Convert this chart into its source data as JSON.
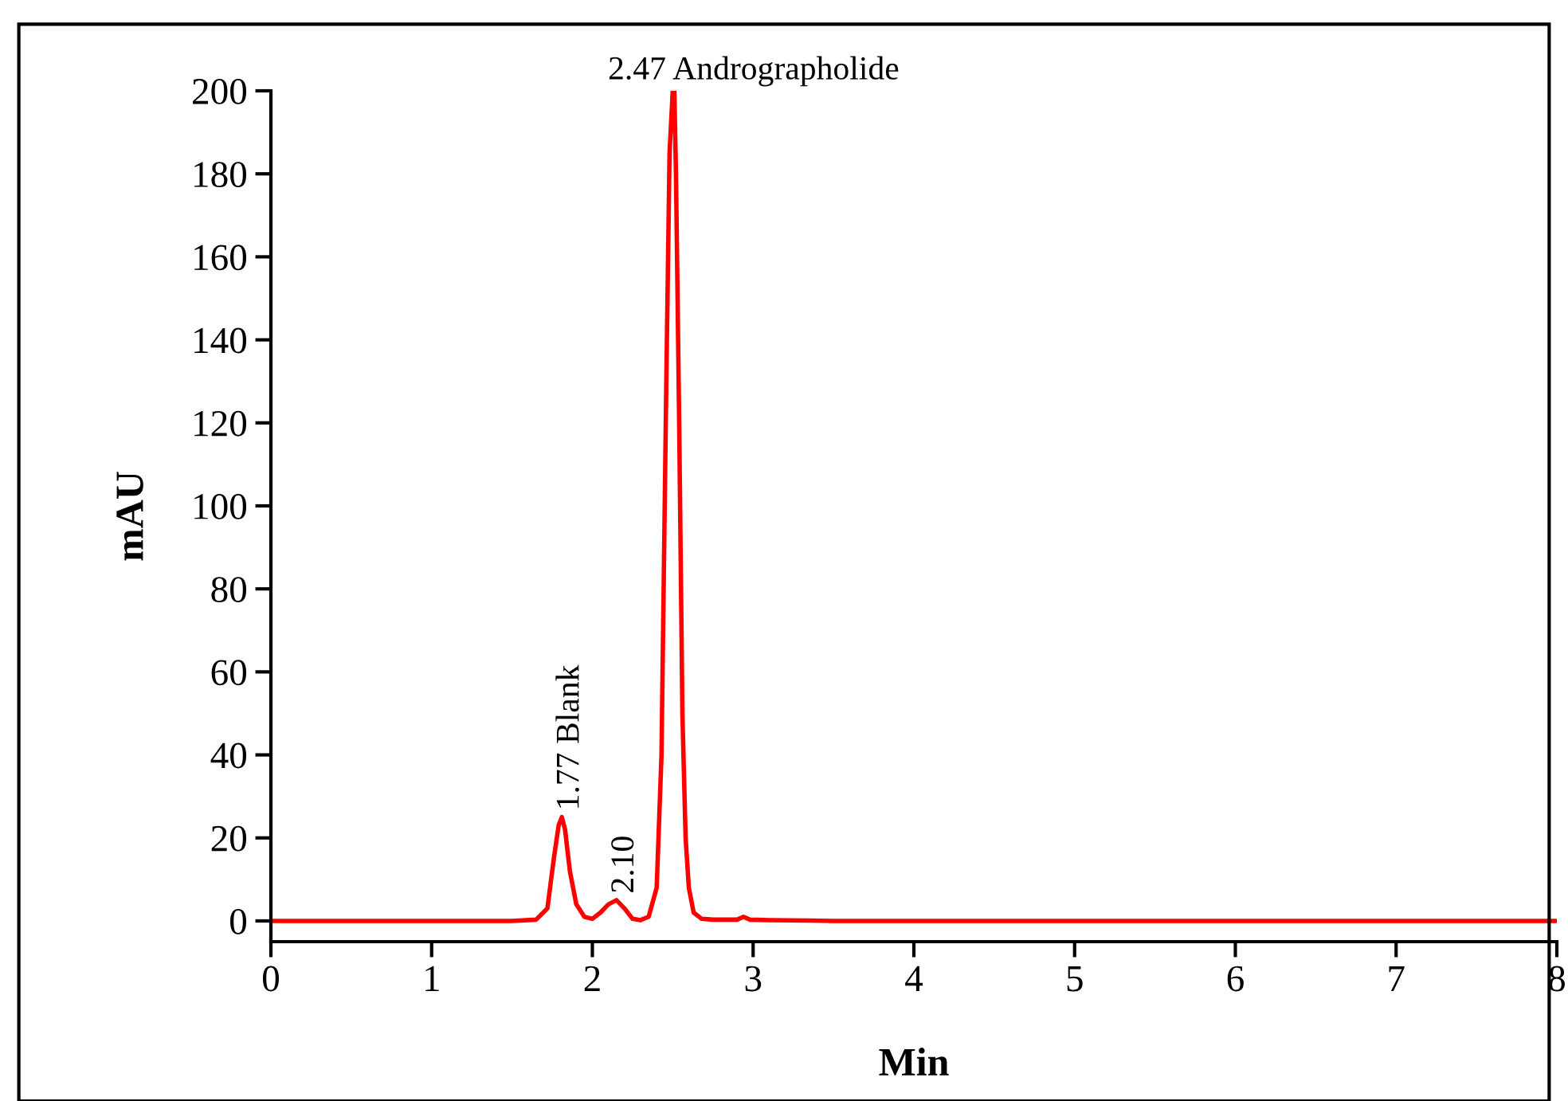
{
  "chart_data": {
    "type": "line",
    "xlabel": "Min",
    "ylabel": "mAU",
    "series": [
      {
        "color": "#ff0000",
        "x": [
          0,
          1.5,
          1.65,
          1.72,
          1.76,
          1.79,
          1.81,
          1.83,
          1.86,
          1.9,
          1.95,
          2.0,
          2.05,
          2.1,
          2.15,
          2.2,
          2.25,
          2.3,
          2.35,
          2.4,
          2.43,
          2.46,
          2.48,
          2.5,
          2.51,
          2.52,
          2.54,
          2.56,
          2.58,
          2.6,
          2.63,
          2.68,
          2.75,
          2.9,
          2.94,
          2.98,
          3.1,
          3.5,
          8
        ],
        "values": [
          0,
          0,
          0.3,
          3,
          15,
          23,
          25,
          22,
          12,
          4,
          1,
          0.5,
          2,
          4,
          5,
          3,
          0.5,
          0.2,
          1,
          8,
          40,
          130,
          185,
          200,
          200,
          180,
          120,
          50,
          20,
          8,
          2,
          0.5,
          0.3,
          0.3,
          1,
          0.3,
          0.2,
          0,
          0
        ]
      }
    ],
    "xlim": [
      0,
      8
    ],
    "xticks": [
      0,
      1,
      2,
      3,
      4,
      5,
      6,
      7,
      8
    ],
    "ylim": [
      -5,
      200
    ],
    "yticks": [
      0,
      20,
      40,
      60,
      80,
      100,
      120,
      140,
      160,
      180,
      200
    ],
    "line_style": "solid",
    "marker": "none",
    "grid": false,
    "legend": false,
    "annotations": [
      {
        "text": "2.47 Andrographolide",
        "x": 2.51,
        "y": 200
      },
      {
        "text": "1.77 Blank",
        "x": 1.81,
        "y": 25
      },
      {
        "text": "2.10",
        "x": 2.15,
        "y": 5
      }
    ]
  }
}
